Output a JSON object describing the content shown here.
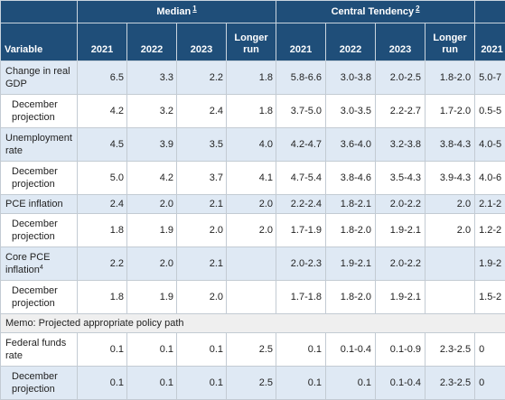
{
  "header": {
    "median_label": "Median",
    "median_note": "1",
    "central_label": "Central Tendency",
    "central_note": "2",
    "variable_label": "Variable",
    "cols": [
      "2021",
      "2022",
      "2023",
      "Longer run",
      "2021",
      "2022",
      "2023",
      "Longer run",
      "2021"
    ]
  },
  "rows": [
    {
      "label": "Change in real GDP",
      "median": [
        "6.5",
        "3.3",
        "2.2",
        "1.8"
      ],
      "central": [
        "5.8-6.6",
        "3.0-3.8",
        "2.0-2.5",
        "1.8-2.0"
      ],
      "range_partial": "5.0-7"
    },
    {
      "label": "December projection",
      "median": [
        "4.2",
        "3.2",
        "2.4",
        "1.8"
      ],
      "central": [
        "3.7-5.0",
        "3.0-3.5",
        "2.2-2.7",
        "1.7-2.0"
      ],
      "range_partial": "0.5-5"
    },
    {
      "label": "Unemployment rate",
      "median": [
        "4.5",
        "3.9",
        "3.5",
        "4.0"
      ],
      "central": [
        "4.2-4.7",
        "3.6-4.0",
        "3.2-3.8",
        "3.8-4.3"
      ],
      "range_partial": "4.0-5"
    },
    {
      "label": "December projection",
      "median": [
        "5.0",
        "4.2",
        "3.7",
        "4.1"
      ],
      "central": [
        "4.7-5.4",
        "3.8-4.6",
        "3.5-4.3",
        "3.9-4.3"
      ],
      "range_partial": "4.0-6"
    },
    {
      "label": "PCE inflation",
      "median": [
        "2.4",
        "2.0",
        "2.1",
        "2.0"
      ],
      "central": [
        "2.2-2.4",
        "1.8-2.1",
        "2.0-2.2",
        "2.0"
      ],
      "range_partial": "2.1-2"
    },
    {
      "label": "December projection",
      "median": [
        "1.8",
        "1.9",
        "2.0",
        "2.0"
      ],
      "central": [
        "1.7-1.9",
        "1.8-2.0",
        "1.9-2.1",
        "2.0"
      ],
      "range_partial": "1.2-2"
    },
    {
      "label": "Core PCE inflation",
      "note": "4",
      "median": [
        "2.2",
        "2.0",
        "2.1",
        ""
      ],
      "central": [
        "2.0-2.3",
        "1.9-2.1",
        "2.0-2.2",
        ""
      ],
      "range_partial": "1.9-2"
    },
    {
      "label": "December projection",
      "median": [
        "1.8",
        "1.9",
        "2.0",
        ""
      ],
      "central": [
        "1.7-1.8",
        "1.8-2.0",
        "1.9-2.1",
        ""
      ],
      "range_partial": "1.5-2"
    }
  ],
  "memo": "Memo: Projected appropriate policy path",
  "policy_rows": [
    {
      "label": "Federal funds rate",
      "median": [
        "0.1",
        "0.1",
        "0.1",
        "2.5"
      ],
      "central": [
        "0.1",
        "0.1-0.4",
        "0.1-0.9",
        "2.3-2.5"
      ],
      "range_partial": "0"
    },
    {
      "label": "December projection",
      "median": [
        "0.1",
        "0.1",
        "0.1",
        "2.5"
      ],
      "central": [
        "0.1",
        "0.1",
        "0.1-0.4",
        "2.3-2.5"
      ],
      "range_partial": "0"
    }
  ]
}
